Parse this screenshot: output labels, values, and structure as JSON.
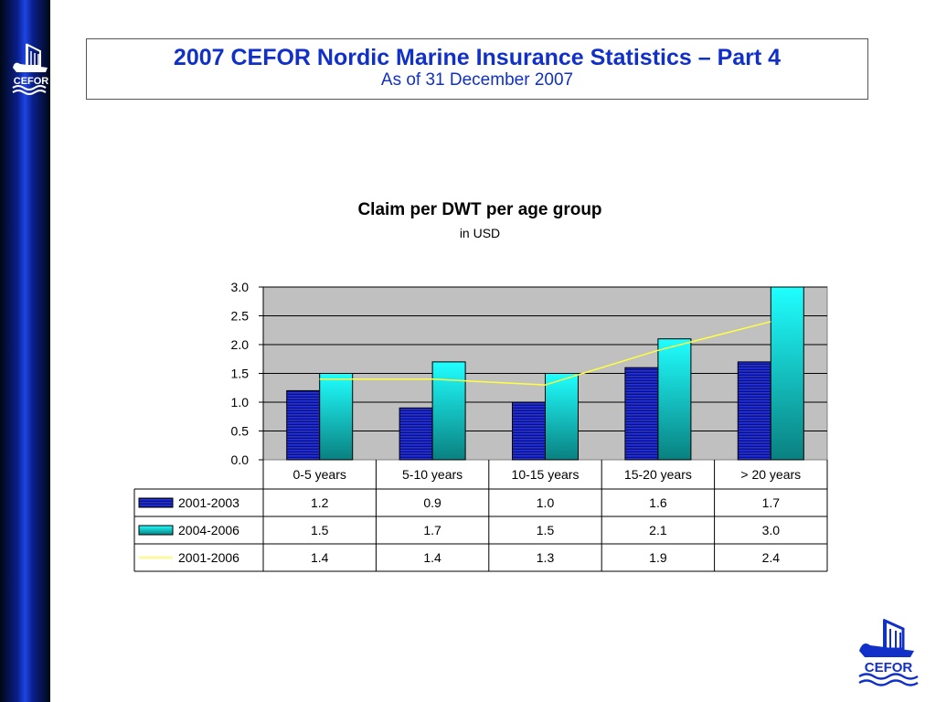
{
  "header": {
    "title": "2007 CEFOR Nordic Marine Insurance Statistics – Part 4",
    "subtitle": "As of 31 December 2007"
  },
  "logo": {
    "text": "CEFOR",
    "icon": "viking-ship-icon"
  },
  "colors": {
    "sidebar": "#1e46e6",
    "title_text": "#1030c8",
    "plot_area": "#c0c0c0",
    "series_2001_2003": "#1a28d8",
    "series_2004_2006": "#18e8e8",
    "series_2001_2006": "#ffff40"
  },
  "chart_data": {
    "type": "bar",
    "title": "Claim per DWT per age group",
    "subtitle": "in USD",
    "categories": [
      "0-5 years",
      "5-10 years",
      "10-15 years",
      "15-20 years",
      "> 20 years"
    ],
    "series": [
      {
        "name": "2001-2003",
        "kind": "bar",
        "values": [
          1.2,
          0.9,
          1.0,
          1.6,
          1.7
        ],
        "value_labels": [
          "1.2",
          "0.9",
          "1.0",
          "1.6",
          "1.7"
        ]
      },
      {
        "name": "2004-2006",
        "kind": "bar",
        "values": [
          1.5,
          1.7,
          1.5,
          2.1,
          3.0
        ],
        "value_labels": [
          "1.5",
          "1.7",
          "1.5",
          "2.1",
          "3.0"
        ]
      },
      {
        "name": "2001-2006",
        "kind": "line",
        "values": [
          1.4,
          1.4,
          1.3,
          1.9,
          2.4
        ],
        "value_labels": [
          "1.4",
          "1.4",
          "1.3",
          "1.9",
          "2.4"
        ]
      }
    ],
    "ylim": [
      0,
      3.0
    ],
    "yticks": [
      "0.0",
      "0.5",
      "1.0",
      "1.5",
      "2.0",
      "2.5",
      "3.0"
    ],
    "grid": true,
    "legend": "data-table-left"
  }
}
